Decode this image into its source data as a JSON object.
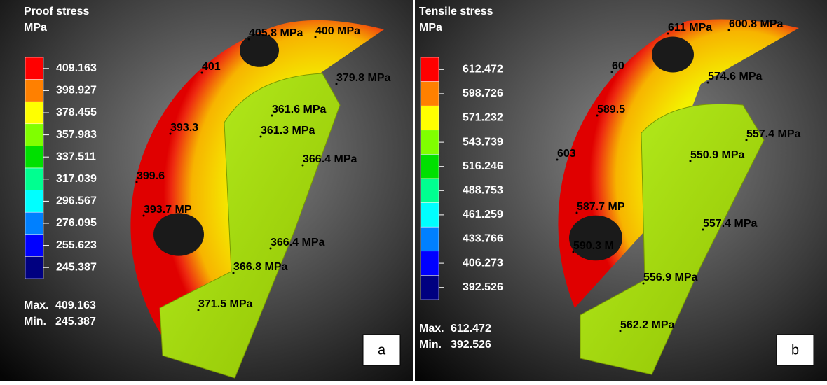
{
  "panels": [
    {
      "title": "Proof stress",
      "unit": "MPa",
      "legend": [
        "409.163",
        "398.927",
        "378.455",
        "357.983",
        "337.511",
        "317.039",
        "296.567",
        "276.095",
        "255.623",
        "245.387"
      ],
      "max_label": "Max.",
      "max": "409.163",
      "min_label": "Min.",
      "min": "245.387",
      "annotations": [
        "405.8 MPa",
        "400 MPa",
        "401",
        "379.8 MPa",
        "361.6 MPa",
        "393.3",
        "361.3 MPa",
        "366.4 MPa",
        "399.6",
        "393.7 MP",
        "366.4 MPa",
        "366.8 MPa",
        "371.5 MPa"
      ],
      "letter": "a"
    },
    {
      "title": "Tensile stress",
      "unit": "MPa",
      "legend": [
        "612.472",
        "598.726",
        "571.232",
        "543.739",
        "516.246",
        "488.753",
        "461.259",
        "433.766",
        "406.273",
        "392.526"
      ],
      "max_label": "Max.",
      "max": "612.472",
      "min_label": "Min.",
      "min": "392.526",
      "annotations": [
        "611 MPa",
        "600.8 MPa",
        "60",
        "574.6 MPa",
        "589.5",
        "557.4 MPa",
        "603",
        "550.9 MPa",
        "587.7 MP",
        "557.4 MPa",
        "590.3 M",
        "556.9 MPa",
        "562.2 MPa"
      ],
      "letter": "b"
    }
  ]
}
